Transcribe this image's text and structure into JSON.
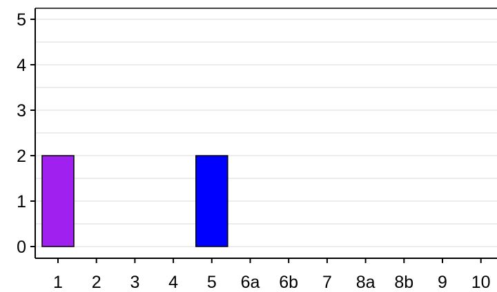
{
  "chart_data": {
    "type": "bar",
    "title": "",
    "xlabel": "",
    "ylabel": "",
    "categories": [
      "1",
      "2",
      "3",
      "4",
      "5",
      "6a",
      "6b",
      "7",
      "8a",
      "8b",
      "9",
      "10"
    ],
    "values": [
      2,
      0,
      0,
      0,
      2,
      0,
      0,
      0,
      0,
      0,
      0,
      0
    ],
    "bar_colors": [
      "#a020f0",
      null,
      null,
      null,
      "#0000ff",
      null,
      null,
      null,
      null,
      null,
      null,
      null
    ],
    "y_ticks": [
      0,
      1,
      2,
      3,
      4,
      5
    ],
    "ylim": [
      -0.2,
      5.2
    ],
    "grid": "horizontal",
    "legend": "none"
  }
}
